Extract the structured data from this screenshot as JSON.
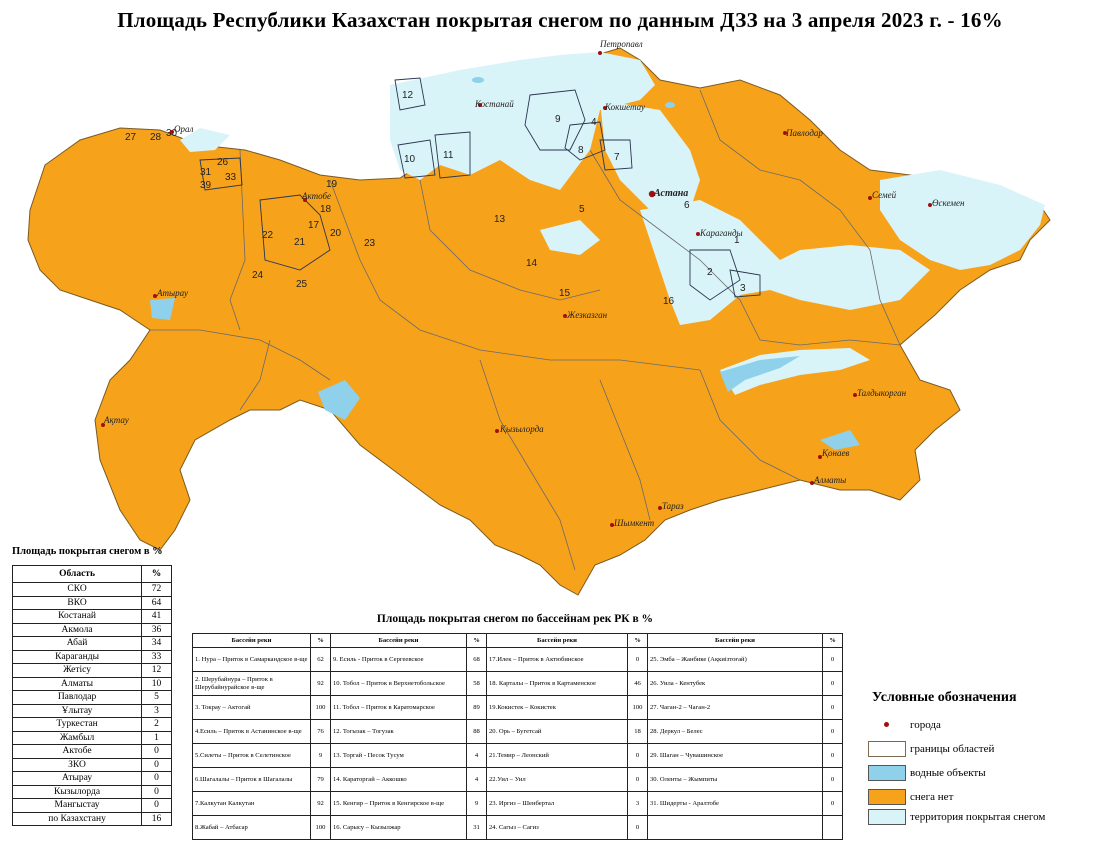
{
  "title": "Площадь Республики Казахстан покрытая снегом по данным ДЗЗ на 3 апреля 2023 г. - 16%",
  "colors": {
    "no_snow": "#f7a21b",
    "snow": "#d9f4f8",
    "water": "#8fd0ea",
    "border": "#6a6a6a",
    "city": "#a01010"
  },
  "cities": [
    "Петропавл",
    "Костанай",
    "Кокшетау",
    "Павлодар",
    "Орал",
    "Актобе",
    "Астана",
    "Семей",
    "Өскемен",
    "Караганды",
    "Атырау",
    "Жезказган",
    "Талдыкорган",
    "Ақтау",
    "Қызылорда",
    "Қонаев",
    "Алматы",
    "Тараз",
    "Шымкент"
  ],
  "basin_numbers": [
    "12",
    "10",
    "11",
    "9",
    "8",
    "7",
    "4",
    "5",
    "6",
    "1",
    "2",
    "3",
    "16",
    "13",
    "14",
    "15",
    "27",
    "28",
    "30",
    "26",
    "31",
    "39",
    "33",
    "18",
    "19",
    "22",
    "21",
    "17",
    "20",
    "23",
    "24",
    "25"
  ],
  "oblast_table": {
    "caption": "Площадь покрытая снегом в %",
    "headers": [
      "Область",
      "%"
    ],
    "rows": [
      [
        "СКО",
        "72"
      ],
      [
        "ВКО",
        "64"
      ],
      [
        "Костанай",
        "41"
      ],
      [
        "Акмола",
        "36"
      ],
      [
        "Абай",
        "34"
      ],
      [
        "Караганды",
        "33"
      ],
      [
        "Жетісу",
        "12"
      ],
      [
        "Алматы",
        "10"
      ],
      [
        "Павлодар",
        "5"
      ],
      [
        "Ұлытау",
        "3"
      ],
      [
        "Туркестан",
        "2"
      ],
      [
        "Жамбыл",
        "1"
      ],
      [
        "Актобе",
        "0"
      ],
      [
        "ЗКО",
        "0"
      ],
      [
        "Атырау",
        "0"
      ],
      [
        "Кызылорда",
        "0"
      ],
      [
        "Мангыстау",
        "0"
      ],
      [
        "по Казахстану",
        "16"
      ]
    ]
  },
  "basin_table": {
    "caption": "Площадь покрытая снегом по бассейнам рек РК в %",
    "headers": [
      "Бассейн реки",
      "%",
      "Бассейн реки",
      "%",
      "Бассейн реки",
      "%",
      "Бассейн реки",
      "%"
    ],
    "rows": [
      [
        "1. Нура – Приток в Самаркандское в-ще",
        "62",
        "9. Есиль - Приток в Сергеевское",
        "68",
        "17.Илек – Приток в Актюбинское",
        "0",
        "25. Эмба – Жанбике (Ақкиізтоғай)",
        "0"
      ],
      [
        "2. Шерубайнура – Приток в Шерубайнурайское в-ще",
        "92",
        "10. Тобол – Приток в Верхнетобольское",
        "58",
        "18. Карталы – Приток в Картаменское",
        "46",
        "26. Уила - Кентубек",
        "0"
      ],
      [
        "3. Токрау – Актогай",
        "100",
        "11. Тобол – Приток в Каратомарское",
        "89",
        "19.Кокистек – Кокистек",
        "100",
        "27. Чаган-2 – Чаган-2",
        "0"
      ],
      [
        "4.Есиль – Приток в Астанинское в-ще",
        "76",
        "12. Тогызак – Тогузак",
        "88",
        "20. Орь – Бугетсай",
        "18",
        "28. Деркул – Белес",
        "0"
      ],
      [
        "5.Силеты – Приток в Селетинское",
        "9",
        "13. Торгай - Песок Тусум",
        "4",
        "21.Темир – Леонский",
        "0",
        "29. Шаган – Чувашинское",
        "0"
      ],
      [
        "6.Шагалалы – Приток в Шагалалы",
        "79",
        "14. Караторгай – Аккошко",
        "4",
        "22.Уил – Уил",
        "0",
        "30. Оленты – Жымпиты",
        "0"
      ],
      [
        "7.Калкутан Калкутан",
        "92",
        "15. Кенгир – Приток в Кенгирское в-ще",
        "9",
        "23. Иргиз – Шенбертал",
        "3",
        "31. Шидерты - Аралтобе",
        "0"
      ],
      [
        "8.Жабай – Атбасар",
        "100",
        "16. Сарысу – Кызылжар",
        "31",
        "24. Сагыз – Сагиз",
        "0",
        "",
        ""
      ]
    ]
  },
  "legend": {
    "title": "Условные обозначения",
    "items": [
      {
        "label": "города",
        "type": "city-dot"
      },
      {
        "label": "границы областей",
        "type": "border"
      },
      {
        "label": "водные объекты",
        "type": "water"
      },
      {
        "label": "снега нет",
        "type": "no-snow"
      },
      {
        "label": "территория покрытая снегом",
        "type": "snow"
      }
    ]
  }
}
